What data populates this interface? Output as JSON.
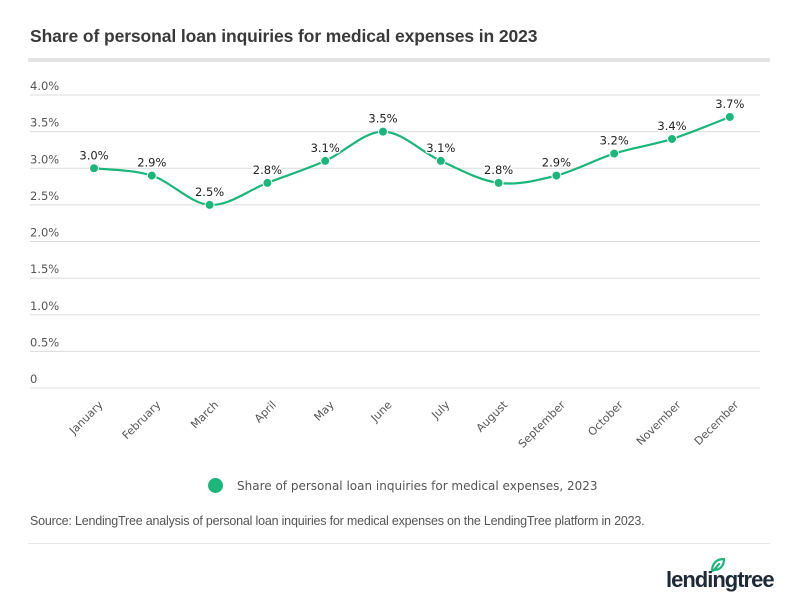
{
  "chart_data": {
    "type": "line",
    "title": "Share of personal loan inquiries for medical expenses in 2023",
    "xlabel": "",
    "ylabel": "",
    "categories": [
      "January",
      "February",
      "March",
      "April",
      "May",
      "June",
      "July",
      "August",
      "September",
      "October",
      "November",
      "December"
    ],
    "series": [
      {
        "name": "Share of personal loan inquiries for medical expenses, 2023",
        "values": [
          3.0,
          2.9,
          2.5,
          2.8,
          3.1,
          3.5,
          3.1,
          2.8,
          2.9,
          3.2,
          3.4,
          3.7
        ],
        "data_labels": [
          "3.0%",
          "2.9%",
          "2.5%",
          "2.8%",
          "3.1%",
          "3.5%",
          "3.1%",
          "2.8%",
          "2.9%",
          "3.2%",
          "3.4%",
          "3.7%"
        ],
        "color": "#1bb67b",
        "smooth": true
      }
    ],
    "ylim": [
      0,
      4.0
    ],
    "yticks": [
      0,
      0.5,
      1.0,
      1.5,
      2.0,
      2.5,
      3.0,
      3.5,
      4.0
    ],
    "ytick_labels": [
      "0",
      "0.5%",
      "1.0%",
      "1.5%",
      "2.0%",
      "2.5%",
      "3.0%",
      "3.5%",
      "4.0%"
    ],
    "grid": true,
    "legend_position": "bottom-center",
    "source": "Source: LendingTree analysis of personal loan inquiries for medical expenses on the LendingTree platform in 2023."
  },
  "brand": {
    "logo_text": "lendingtree",
    "logo_color": "#1f2a36",
    "accent": "#1bb67b"
  },
  "colors": {
    "gridline": "#dcdcdc",
    "title": "#3a3a3a",
    "axis_text": "#555555"
  }
}
